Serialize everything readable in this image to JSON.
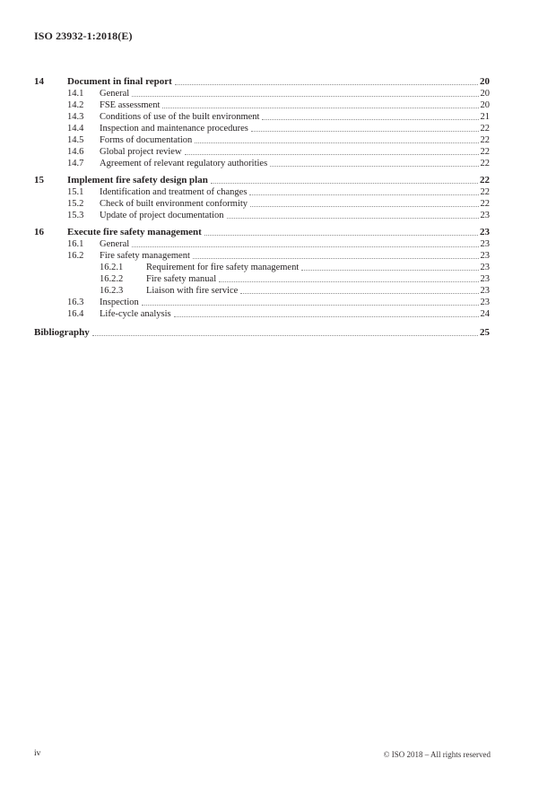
{
  "document": {
    "header": "ISO 23932-1:2018(E)",
    "footer": {
      "page_label": "iv",
      "copyright": "© ISO 2018 – All rights reserved"
    }
  },
  "toc": {
    "entries": [
      {
        "level": 1,
        "num": "14",
        "title": "Document in final report",
        "page": "20"
      },
      {
        "level": 2,
        "num": "14.1",
        "title": "General",
        "page": "20"
      },
      {
        "level": 2,
        "num": "14.2",
        "title": "FSE assessment",
        "page": "20"
      },
      {
        "level": 2,
        "num": "14.3",
        "title": "Conditions of use of the built environment",
        "page": "21"
      },
      {
        "level": 2,
        "num": "14.4",
        "title": "Inspection and maintenance procedures",
        "page": "22"
      },
      {
        "level": 2,
        "num": "14.5",
        "title": "Forms of documentation",
        "page": "22"
      },
      {
        "level": 2,
        "num": "14.6",
        "title": "Global project review",
        "page": "22"
      },
      {
        "level": 2,
        "num": "14.7",
        "title": "Agreement of relevant regulatory authorities",
        "page": "22"
      },
      {
        "level": 1,
        "num": "15",
        "title": "Implement fire safety design plan",
        "page": "22"
      },
      {
        "level": 2,
        "num": "15.1",
        "title": "Identification and treatment of changes",
        "page": "22"
      },
      {
        "level": 2,
        "num": "15.2",
        "title": "Check of built environment conformity",
        "page": "22"
      },
      {
        "level": 2,
        "num": "15.3",
        "title": "Update of project documentation",
        "page": "23"
      },
      {
        "level": 1,
        "num": "16",
        "title": "Execute fire safety management",
        "page": "23"
      },
      {
        "level": 2,
        "num": "16.1",
        "title": "General",
        "page": "23"
      },
      {
        "level": 2,
        "num": "16.2",
        "title": "Fire safety management",
        "page": "23"
      },
      {
        "level": 3,
        "num": "16.2.1",
        "title": "Requirement for fire safety management",
        "page": "23"
      },
      {
        "level": 3,
        "num": "16.2.2",
        "title": "Fire safety manual",
        "page": "23"
      },
      {
        "level": 3,
        "num": "16.2.3",
        "title": "Liaison with fire service",
        "page": "23"
      },
      {
        "level": 2,
        "num": "16.3",
        "title": "Inspection",
        "page": "23"
      },
      {
        "level": 2,
        "num": "16.4",
        "title": "Life-cycle analysis",
        "page": "24"
      },
      {
        "level": 0,
        "num": "",
        "title": "Bibliography",
        "page": "25"
      }
    ]
  },
  "colors": {
    "text": "#272324",
    "leader_dots": "#8f8f8f",
    "page_background": "#ffffff"
  }
}
